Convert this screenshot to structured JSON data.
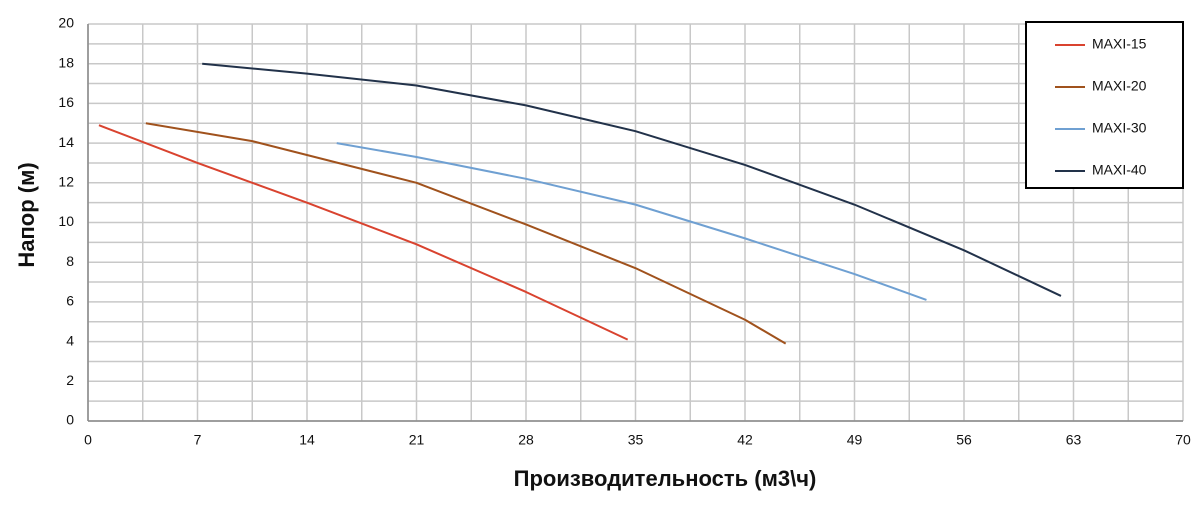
{
  "chart_data": {
    "type": "line",
    "x_label": "Производительность (м3\\ч)",
    "y_label": "Напор (м)",
    "xlim": [
      0,
      70
    ],
    "xticks": [
      0,
      7,
      14,
      21,
      28,
      35,
      42,
      49,
      56,
      63,
      70
    ],
    "ylim": [
      0,
      20
    ],
    "yticks": [
      0,
      2,
      4,
      6,
      8,
      10,
      12,
      14,
      16,
      18,
      20
    ],
    "grid": true,
    "legend": "top-right",
    "series": [
      {
        "name": "MAXI-15",
        "color": "#d9432f",
        "x": [
          0.7,
          7,
          14,
          21,
          28,
          34.5
        ],
        "values": [
          14.9,
          13,
          11,
          8.9,
          6.5,
          4.1
        ]
      },
      {
        "name": "MAXI-20",
        "color": "#a0521d",
        "x": [
          3.7,
          10.5,
          21,
          28,
          35,
          42,
          44.6
        ],
        "values": [
          15,
          14.1,
          12,
          9.9,
          7.7,
          5.1,
          3.9
        ]
      },
      {
        "name": "MAXI-30",
        "color": "#6fa0d2",
        "x": [
          15.9,
          21,
          28,
          35,
          42,
          49,
          53.6
        ],
        "values": [
          14,
          13.3,
          12.2,
          10.9,
          9.2,
          7.4,
          6.1
        ]
      },
      {
        "name": "MAXI-40",
        "color": "#22324a",
        "x": [
          7.3,
          14,
          21,
          28,
          35,
          42,
          49,
          56,
          62.2
        ],
        "values": [
          18,
          17.5,
          16.9,
          15.9,
          14.6,
          12.9,
          10.9,
          8.6,
          6.3
        ]
      }
    ]
  }
}
